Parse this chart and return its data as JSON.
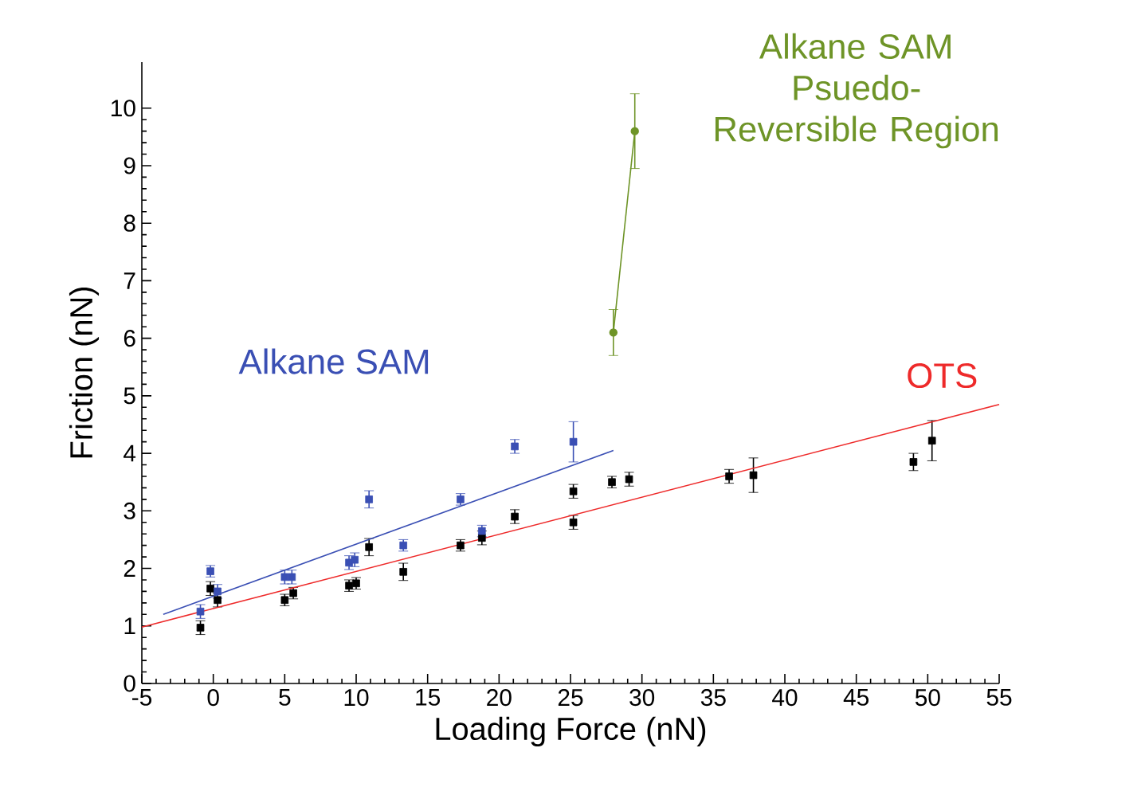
{
  "chart_data": {
    "type": "scatter",
    "xlabel": "Loading Force (nN)",
    "ylabel": "Friction (nN)",
    "xlim": [
      -5,
      55
    ],
    "ylim": [
      0,
      10.8
    ],
    "xticks": [
      -5,
      0,
      5,
      10,
      15,
      20,
      25,
      30,
      35,
      40,
      45,
      50,
      55
    ],
    "yticks": [
      0,
      1,
      2,
      3,
      4,
      5,
      6,
      7,
      8,
      9,
      10
    ],
    "grid": false,
    "marker": "square",
    "line_style": "solid",
    "series": [
      {
        "color": "#000000",
        "x": [
          -0.9,
          -0.2,
          0.3,
          5.0,
          5.6,
          9.5,
          10.0,
          10.9,
          13.3,
          17.3,
          18.8,
          21.1,
          25.2,
          25.2,
          27.9,
          29.1,
          36.1,
          37.8,
          49.0,
          50.3
        ],
        "values": [
          0.97,
          1.65,
          1.45,
          1.45,
          1.57,
          1.7,
          1.74,
          2.37,
          1.94,
          2.4,
          2.53,
          2.9,
          3.34,
          2.8,
          3.5,
          3.55,
          3.6,
          3.62,
          3.85,
          4.22
        ],
        "errors": [
          0.12,
          0.12,
          0.12,
          0.1,
          0.1,
          0.1,
          0.1,
          0.15,
          0.15,
          0.1,
          0.12,
          0.12,
          0.12,
          0.12,
          0.1,
          0.12,
          0.12,
          0.3,
          0.15,
          0.35
        ]
      },
      {
        "color": "#3a4fb4",
        "x": [
          -0.9,
          -0.2,
          0.3,
          5.0,
          5.5,
          9.5,
          9.9,
          10.9,
          13.3,
          17.3,
          18.8,
          21.1,
          25.2
        ],
        "values": [
          1.25,
          1.95,
          1.6,
          1.85,
          1.85,
          2.1,
          2.15,
          3.2,
          2.4,
          3.2,
          2.65,
          4.12,
          4.2
        ],
        "errors": [
          0.12,
          0.1,
          0.12,
          0.12,
          0.12,
          0.12,
          0.12,
          0.15,
          0.1,
          0.1,
          0.1,
          0.12,
          0.35
        ]
      },
      {
        "type": "line",
        "name": "OTS",
        "color": "#ee2a2a",
        "marker": "none",
        "x": [
          -5,
          55
        ],
        "values": [
          0.98,
          4.85
        ]
      },
      {
        "type": "line",
        "name": "Alkane SAM",
        "color": "#3a4fb4",
        "marker": "none",
        "x": [
          -3.5,
          28
        ],
        "values": [
          1.2,
          4.05
        ]
      },
      {
        "type": "line",
        "name": "Alkane SAM Psuedo-Reversible Region",
        "color": "#6e9427",
        "marker": "circle",
        "x": [
          28,
          29.5
        ],
        "values": [
          6.1,
          9.6
        ],
        "errors": [
          0.4,
          0.65
        ]
      }
    ]
  }
}
